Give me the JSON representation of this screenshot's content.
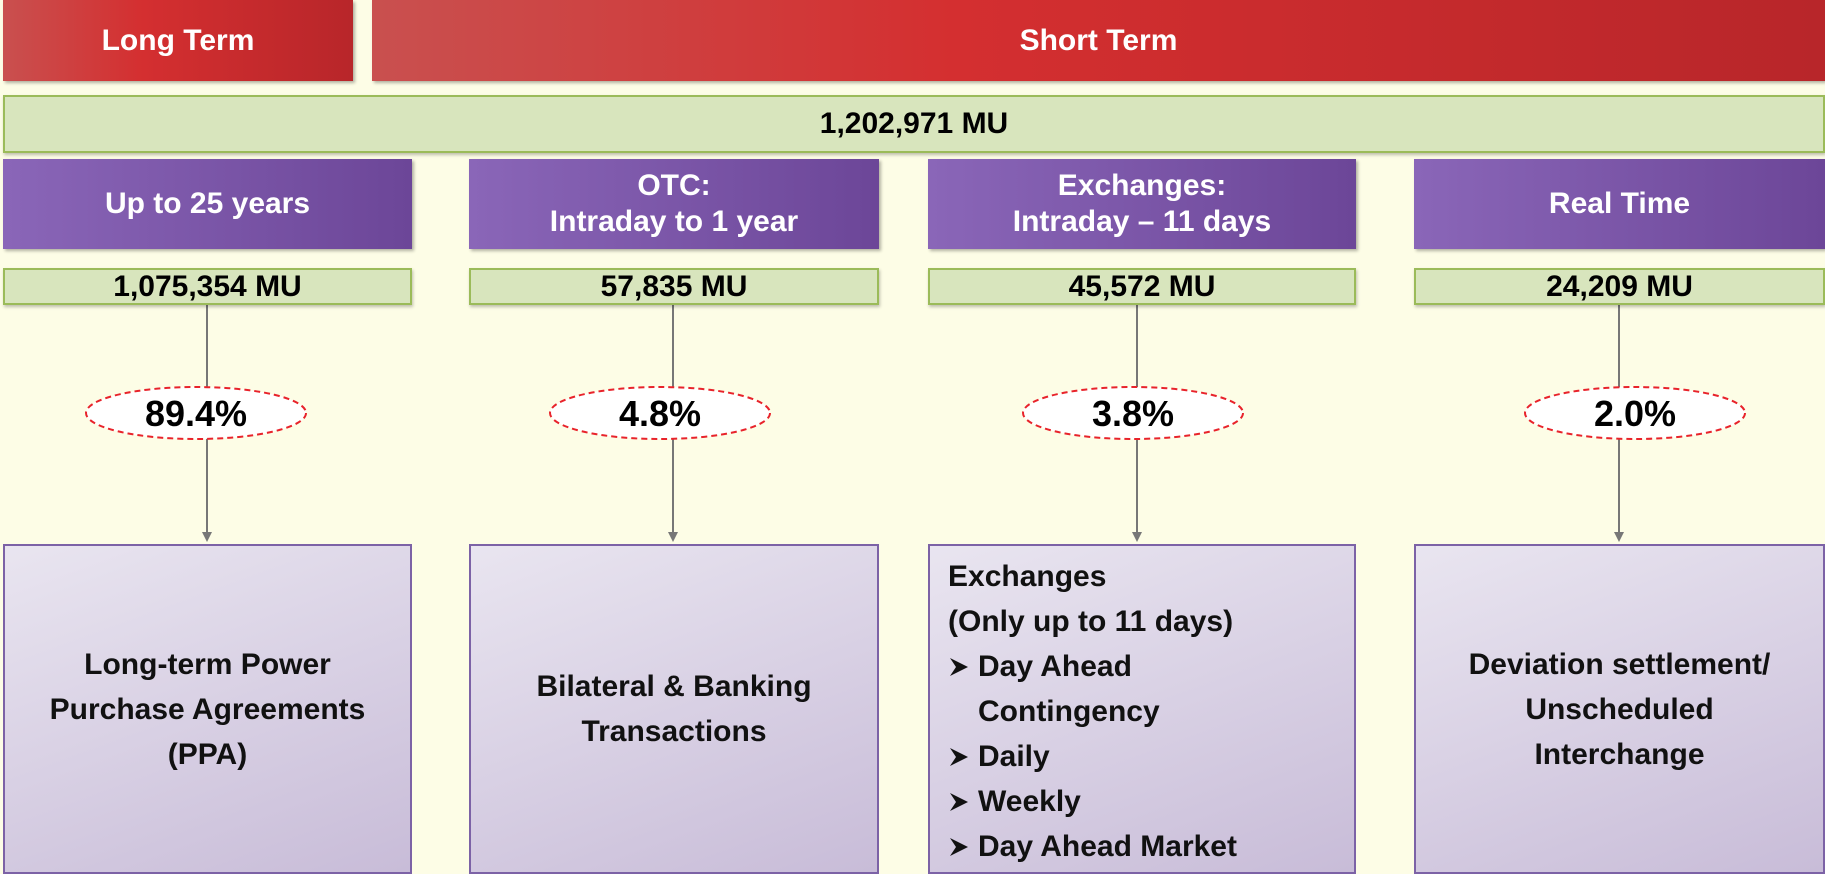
{
  "header": {
    "long_term": "Long Term",
    "short_term": "Short Term"
  },
  "total": "1,202,971  MU",
  "columns": [
    {
      "label": [
        "Up to 25 years"
      ],
      "value": "1,075,354 MU",
      "share": "89.4%",
      "description": {
        "lines": [
          "Long-term Power",
          "Purchase Agreements",
          "(PPA)"
        ],
        "bullets": []
      }
    },
    {
      "label": [
        "OTC:",
        "Intraday to 1 year"
      ],
      "value": "57,835 MU",
      "share": "4.8%",
      "description": {
        "lines": [
          "Bilateral  & Banking",
          "Transactions"
        ],
        "bullets": []
      }
    },
    {
      "label": [
        "Exchanges:",
        "Intraday – 11 days"
      ],
      "value": "45,572 MU",
      "share": "3.8%",
      "description": {
        "lines": [
          "Exchanges",
          "(Only up to 11 days)"
        ],
        "bullets": [
          "Day Ahead Contingency",
          "Daily",
          "Weekly",
          "Day Ahead Market"
        ]
      }
    },
    {
      "label": [
        "Real Time"
      ],
      "value": "24,209 MU",
      "share": "2.0%",
      "description": {
        "lines": [
          "Deviation settlement/",
          "Unscheduled",
          "Interchange"
        ],
        "bullets": []
      }
    }
  ]
}
